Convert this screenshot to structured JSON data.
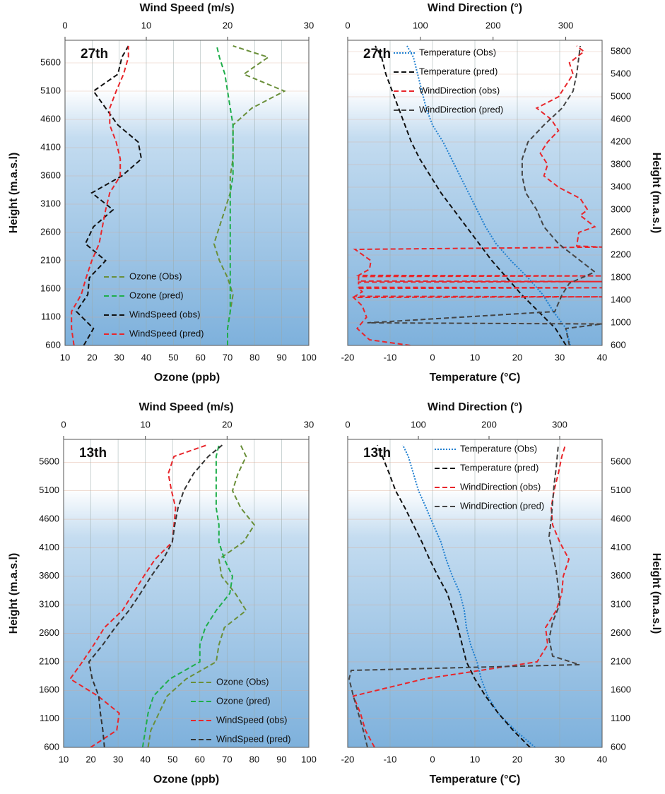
{
  "chart_data": [
    {
      "type": "line",
      "label": "27th",
      "x_label": "Ozone (ppb)",
      "x2_label": "Wind Speed (m/s)",
      "y_label": "Height (m.a.s.l)",
      "y_side": "left",
      "legend": "lower center",
      "grid": true,
      "xlim": [
        10,
        100
      ],
      "xticks": [
        10,
        20,
        30,
        40,
        50,
        60,
        70,
        80,
        90,
        100
      ],
      "x2lim": [
        0,
        30
      ],
      "x2ticks": [
        0,
        10,
        20,
        30
      ],
      "ylim": [
        600,
        6000
      ],
      "yticks": [
        600,
        1100,
        1600,
        2100,
        2600,
        3100,
        3600,
        4100,
        4600,
        5100,
        5600
      ],
      "series": [
        {
          "name": "Ozone (Obs)",
          "color": "#6a8f3a",
          "linestyle": "dashed",
          "axis": "x",
          "heights": [
            600,
            900,
            1200,
            1500,
            1800,
            2100,
            2400,
            2700,
            3000,
            3300,
            3600,
            3900,
            4200,
            4500,
            4800,
            5100,
            5400,
            5700,
            5900
          ],
          "values": [
            70,
            70,
            71,
            72,
            70,
            67,
            65,
            67,
            69,
            71,
            71,
            72,
            72,
            72,
            79,
            91,
            76,
            85,
            72
          ]
        },
        {
          "name": "Ozone (pred)",
          "color": "#1fae4b",
          "linestyle": "dashed",
          "axis": "x",
          "heights": [
            600,
            900,
            1200,
            1500,
            1800,
            2100,
            2400,
            2700,
            3000,
            3300,
            3600,
            3900,
            4200,
            4500,
            4800,
            5100,
            5400,
            5700,
            5900
          ],
          "values": [
            70,
            70,
            71,
            71,
            71,
            71,
            71,
            71,
            71,
            71,
            72,
            72,
            72,
            72,
            71,
            70,
            69,
            67,
            66
          ]
        },
        {
          "name": "WindSpeed (obs)",
          "color": "#111111",
          "linestyle": "dashed",
          "axis": "x2",
          "heights": [
            600,
            900,
            1200,
            1500,
            1800,
            2100,
            2400,
            2700,
            3000,
            3300,
            3600,
            3900,
            4200,
            4500,
            4800,
            5100,
            5400,
            5700,
            5900
          ],
          "values": [
            2.3,
            3.5,
            1.4,
            2.8,
            3.0,
            5.0,
            2.5,
            3.5,
            5.9,
            3.3,
            7.0,
            9.4,
            9.0,
            6.5,
            5.0,
            3.5,
            6.5,
            7.0,
            7.8
          ]
        },
        {
          "name": "WindSpeed (pred)",
          "color": "#e8262b",
          "linestyle": "dashed",
          "axis": "x2",
          "heights": [
            600,
            900,
            1200,
            1500,
            1800,
            2100,
            2400,
            2700,
            3000,
            3300,
            3600,
            3900,
            4200,
            4500,
            4800,
            5100,
            5400,
            5700,
            5900
          ],
          "values": [
            1.1,
            0.8,
            0.8,
            2.0,
            2.6,
            3.3,
            4.2,
            4.6,
            5.0,
            5.5,
            6.8,
            6.8,
            6.3,
            5.5,
            5.5,
            6.3,
            7.2,
            7.8,
            7.8
          ]
        }
      ]
    },
    {
      "type": "line",
      "label": "27th",
      "x_label": "Temperature (°C)",
      "x2_label": "Wind Direction (°)",
      "y_label": "Height (m.a.s.l)",
      "y_side": "right",
      "legend": "upper center",
      "grid": true,
      "xlim": [
        -20,
        40
      ],
      "xticks": [
        -20,
        -10,
        0,
        10,
        20,
        30,
        40
      ],
      "x2lim": [
        0,
        350
      ],
      "x2ticks": [
        0,
        100,
        200,
        300
      ],
      "ylim": [
        600,
        6000
      ],
      "yticks": [
        600,
        1000,
        1400,
        1800,
        2200,
        2600,
        3000,
        3400,
        3800,
        4200,
        4600,
        5000,
        5400,
        5800
      ],
      "series": [
        {
          "name": "Temperature (Obs)",
          "color": "#1f7fd0",
          "linestyle": "dotted",
          "axis": "x",
          "heights": [
            600,
            900,
            1200,
            1500,
            1800,
            2100,
            2400,
            2700,
            3000,
            3300,
            3600,
            3900,
            4200,
            4500,
            4800,
            5100,
            5400,
            5700,
            5900
          ],
          "values": [
            32.5,
            31.5,
            28.5,
            26,
            22.5,
            18.5,
            15,
            12.5,
            10.5,
            8.5,
            6.5,
            4.5,
            2.5,
            0,
            -1.5,
            -2.5,
            -3.5,
            -4.5,
            -6
          ]
        },
        {
          "name": "Temperature (pred)",
          "color": "#111111",
          "linestyle": "dashed",
          "axis": "x",
          "heights": [
            600,
            900,
            1200,
            1500,
            1800,
            2100,
            2400,
            2700,
            3000,
            3300,
            3600,
            3900,
            4200,
            4500,
            4800,
            5100,
            5400,
            5700,
            5900
          ],
          "values": [
            31.5,
            29,
            25,
            21,
            17.5,
            14,
            11,
            8,
            5,
            2,
            -0.5,
            -3,
            -5,
            -6.5,
            -8,
            -9.5,
            -11,
            -12,
            -13.5
          ]
        },
        {
          "name": "WindDirection (obs)",
          "color": "#e8262b",
          "linestyle": "dashed",
          "axis": "x2",
          "heights": [
            600,
            700,
            900,
            1100,
            1300,
            1450,
            1460,
            1470,
            1550,
            1610,
            1620,
            1630,
            1720,
            1730,
            1740,
            1820,
            1830,
            1840,
            1950,
            2100,
            2300,
            2340,
            2360,
            2600,
            2700,
            2900,
            3000,
            3200,
            3400,
            3600,
            3800,
            4000,
            4200,
            4400,
            4600,
            4800,
            5000,
            5200,
            5400,
            5600,
            5800,
            5900
          ],
          "values": [
            86,
            30,
            13,
            26,
            20,
            8,
            350,
            10,
            20,
            15,
            350,
            15,
            15,
            350,
            15,
            15,
            350,
            15,
            30,
            32,
            10,
            350,
            315,
            318,
            340,
            320,
            330,
            320,
            290,
            270,
            275,
            265,
            275,
            290,
            280,
            260,
            290,
            300,
            310,
            305,
            325,
            315
          ]
        },
        {
          "name": "WindDirection (pred)",
          "color": "#444444",
          "linestyle": "dashed",
          "axis": "x2",
          "heights": [
            600,
            900,
            980,
            1000,
            1200,
            1500,
            1700,
            1900,
            2100,
            2400,
            2700,
            3000,
            3300,
            3600,
            3900,
            4200,
            4500,
            4800,
            5100,
            5400,
            5700,
            5900
          ],
          "values": [
            305,
            300,
            350,
            27,
            285,
            295,
            305,
            340,
            320,
            290,
            270,
            260,
            245,
            240,
            240,
            248,
            270,
            295,
            310,
            315,
            318,
            320
          ]
        }
      ]
    },
    {
      "type": "line",
      "label": "13th",
      "x_label": "Ozone (ppb)",
      "x2_label": "Wind Speed (m/s)",
      "y_label": "Height (m.a.s.l)",
      "y_side": "left",
      "legend": "lower right",
      "grid": true,
      "xlim": [
        10,
        100
      ],
      "xticks": [
        10,
        20,
        30,
        40,
        50,
        60,
        70,
        80,
        90,
        100
      ],
      "x2lim": [
        0,
        30
      ],
      "x2ticks": [
        0,
        10,
        20,
        30
      ],
      "ylim": [
        600,
        6000
      ],
      "yticks": [
        600,
        1100,
        1600,
        2100,
        2600,
        3100,
        3600,
        4100,
        4600,
        5100,
        5600
      ],
      "series": [
        {
          "name": "Ozone (Obs)",
          "color": "#6a8f3a",
          "linestyle": "dashed",
          "axis": "x",
          "heights": [
            600,
            900,
            1200,
            1500,
            1800,
            2100,
            2400,
            2700,
            3000,
            3300,
            3600,
            3900,
            4200,
            4500,
            4800,
            5100,
            5400,
            5700,
            5900
          ],
          "values": [
            41,
            42,
            45,
            48,
            55,
            66,
            67,
            69,
            77,
            73,
            68,
            67,
            76,
            80,
            75,
            72,
            74,
            77,
            75
          ]
        },
        {
          "name": "Ozone (pred)",
          "color": "#1fae4b",
          "linestyle": "dashed",
          "axis": "x",
          "heights": [
            600,
            900,
            1200,
            1500,
            1800,
            2100,
            2400,
            2700,
            3000,
            3300,
            3600,
            3900,
            4200,
            4500,
            4800,
            5100,
            5400,
            5700,
            5900
          ],
          "values": [
            39,
            40,
            41,
            43,
            49,
            60,
            60,
            62,
            66,
            71,
            72,
            69,
            67,
            67,
            66,
            66,
            66,
            66,
            67
          ]
        },
        {
          "name": "WindSpeed (obs)",
          "color": "#e8262b",
          "linestyle": "dashed",
          "axis": "x2",
          "heights": [
            600,
            900,
            1200,
            1500,
            1800,
            2100,
            2400,
            2700,
            3000,
            3300,
            3600,
            3900,
            4200,
            4500,
            4800,
            5100,
            5400,
            5700,
            5900
          ],
          "values": [
            3.3,
            6.5,
            6.8,
            4.2,
            0.8,
            2.3,
            3.7,
            5.0,
            7.2,
            8.5,
            9.8,
            11.2,
            13.3,
            13.5,
            13.7,
            13.2,
            12.8,
            13.5,
            17.5
          ]
        },
        {
          "name": "WindSpeed (pred)",
          "color": "#333333",
          "linestyle": "dashed",
          "axis": "x2",
          "heights": [
            600,
            900,
            1200,
            1500,
            1800,
            2100,
            2400,
            2700,
            3000,
            3300,
            3600,
            3900,
            4200,
            4500,
            4800,
            5100,
            5400,
            5700,
            5900
          ],
          "values": [
            5.0,
            4.8,
            4.5,
            4.3,
            3.5,
            3.1,
            4.8,
            6.3,
            8.0,
            9.4,
            10.7,
            12.2,
            13.3,
            13.6,
            14.0,
            14.7,
            15.9,
            17.7,
            19.4
          ]
        }
      ]
    },
    {
      "type": "line",
      "label": "13th",
      "x_label": "Temperature (°C)",
      "x2_label": "Wind Direction (°)",
      "y_label": "Height (m.a.s.l)",
      "y_side": "right",
      "legend": "upper right",
      "grid": true,
      "xlim": [
        -20,
        40
      ],
      "xticks": [
        -20,
        -10,
        0,
        10,
        20,
        30,
        40
      ],
      "x2lim": [
        0,
        360
      ],
      "x2ticks": [
        0,
        100,
        200,
        300
      ],
      "ylim": [
        600,
        6000
      ],
      "yticks": [
        600,
        1100,
        1600,
        2100,
        2600,
        3100,
        3600,
        4100,
        4600,
        5100,
        5600
      ],
      "series": [
        {
          "name": "Temperature (Obs)",
          "color": "#1f7fd0",
          "linestyle": "dotted",
          "axis": "x",
          "heights": [
            600,
            900,
            1200,
            1500,
            1800,
            2100,
            2400,
            2700,
            3000,
            3300,
            3600,
            3900,
            4200,
            4500,
            4800,
            5100,
            5400,
            5700,
            5900
          ],
          "values": [
            24.2,
            19.5,
            15.5,
            13,
            11.5,
            10.5,
            9,
            8,
            7.5,
            6.5,
            4.7,
            3.2,
            2,
            0.2,
            -1.5,
            -3.3,
            -4.5,
            -5.7,
            -7
          ]
        },
        {
          "name": "Temperature (pred)",
          "color": "#111111",
          "linestyle": "dashed",
          "axis": "x",
          "heights": [
            600,
            900,
            1200,
            1500,
            1800,
            2100,
            2400,
            2700,
            3000,
            3300,
            3600,
            3900,
            4200,
            4500,
            4800,
            5100,
            5400,
            5700,
            5900
          ],
          "values": [
            23,
            19,
            15.5,
            12.5,
            10,
            8,
            7,
            6,
            4.8,
            3.5,
            1.3,
            -0.7,
            -2.5,
            -4.5,
            -6.5,
            -8.7,
            -10.2,
            -11.8,
            -13
          ]
        },
        {
          "name": "WindDirection (obs)",
          "color": "#e8262b",
          "linestyle": "dashed",
          "axis": "x2",
          "heights": [
            600,
            900,
            1200,
            1500,
            1800,
            2100,
            2400,
            2700,
            3000,
            3300,
            3600,
            3900,
            4200,
            4500,
            4800,
            5100,
            5400,
            5700,
            5900
          ],
          "values": [
            38,
            25,
            18,
            8,
            108,
            268,
            283,
            280,
            295,
            303,
            305,
            313,
            300,
            290,
            288,
            292,
            298,
            303,
            308
          ]
        },
        {
          "name": "WindDirection (pred)",
          "color": "#444444",
          "linestyle": "dashed",
          "axis": "x2",
          "heights": [
            600,
            900,
            1200,
            1500,
            1800,
            1950,
            2050,
            2200,
            2500,
            2800,
            3100,
            3400,
            3700,
            4000,
            4300,
            4600,
            4900,
            5200,
            5500,
            5900
          ],
          "values": [
            28,
            22,
            15,
            8,
            2,
            5,
            328,
            290,
            285,
            290,
            300,
            298,
            295,
            290,
            285,
            288,
            290,
            292,
            295,
            298
          ]
        }
      ]
    }
  ]
}
